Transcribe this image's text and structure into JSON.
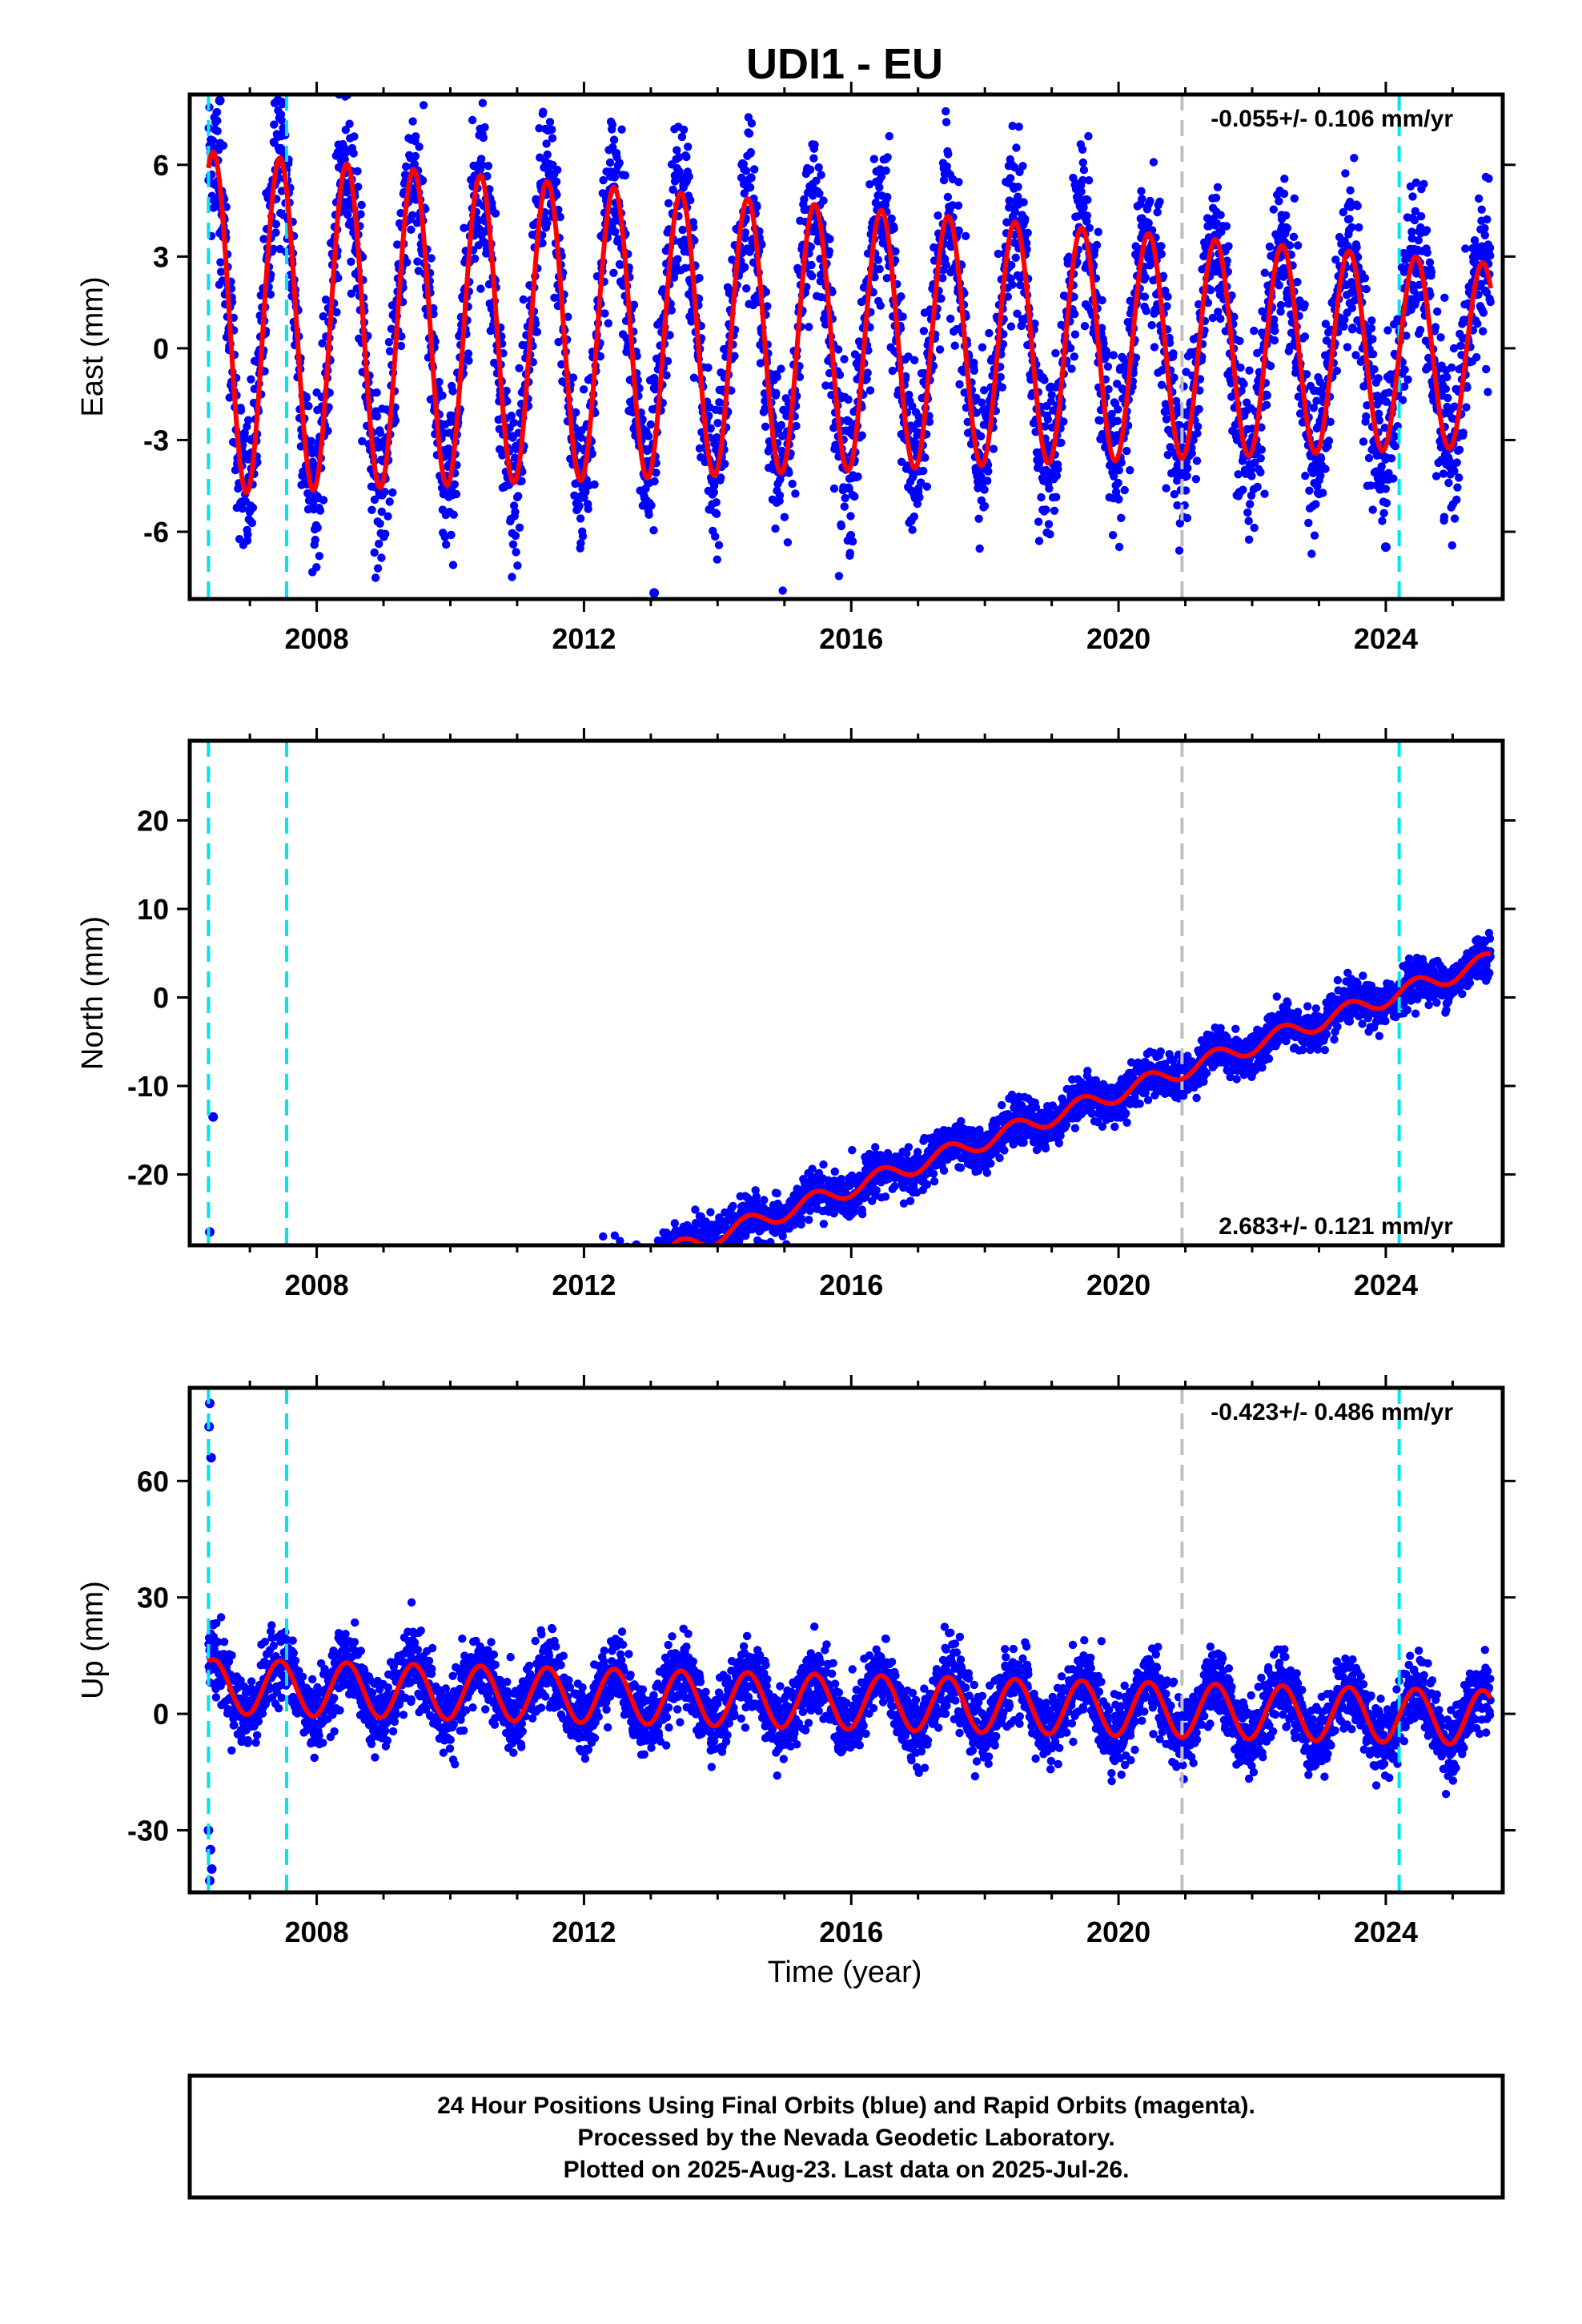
{
  "chart_data": {
    "type": "scatter",
    "title": "UDI1 - EU",
    "xlabel": "Time (year)",
    "x_ticks": [
      2008,
      2012,
      2016,
      2020,
      2024
    ],
    "xlim": [
      2006.1,
      2025.75
    ],
    "data_start": 2006.38,
    "data_end": 2025.57,
    "event_lines": [
      {
        "x": 2006.38,
        "color": "#00e5ee"
      },
      {
        "x": 2007.55,
        "color": "#00e5ee"
      },
      {
        "x": 2020.95,
        "color": "#bfbfbf"
      },
      {
        "x": 2024.2,
        "color": "#00e5ee"
      }
    ],
    "series": [
      {
        "name": "Final Orbits",
        "marker_color": "#0000ff"
      },
      {
        "name": "Model",
        "line_color": "#ff0000"
      }
    ],
    "panels": [
      {
        "component": "East",
        "ylabel": "East (mm)",
        "ylim": [
          -8.2,
          8.3
        ],
        "y_ticks": [
          -6,
          -3,
          0,
          3,
          6
        ],
        "y_tick_labels": [
          "-6",
          "-3",
          "0",
          "3",
          "6"
        ],
        "rate_label": "-0.055+/- 0.106 mm/yr",
        "rate_position": "top-right",
        "rate_mm_per_yr": -0.055,
        "rate_sigma": 0.106,
        "trend": {
          "slope": -0.055,
          "intercept": 0.3
        },
        "seasonal_amplitude": [
          5.6,
          3.0
        ],
        "scatter_sd": 1.3,
        "outliers": [
          {
            "x": 2006.55,
            "y": 8.1
          },
          {
            "x": 2007.42,
            "y": 8.1
          },
          {
            "x": 2013.05,
            "y": -8.0
          },
          {
            "x": 2024.0,
            "y": -6.5
          }
        ]
      },
      {
        "component": "North",
        "ylabel": "North (mm)",
        "ylim": [
          -28,
          29
        ],
        "y_ticks": [
          -20,
          -10,
          0,
          10,
          20
        ],
        "y_tick_labels": [
          "-20",
          "-10",
          "0",
          "10",
          "20"
        ],
        "rate_label": "2.683+/- 0.121 mm/yr",
        "rate_position": "bottom-right",
        "rate_mm_per_yr": 2.683,
        "rate_sigma": 0.121,
        "trend": {
          "slope": 2.683,
          "intercept": -21.5
        },
        "seasonal_amplitude": [
          1.0,
          1.0
        ],
        "scatter_sd": 1.2,
        "outliers": [
          {
            "x": 2006.45,
            "y": -13.5
          },
          {
            "x": 2006.4,
            "y": -26.5
          }
        ]
      },
      {
        "component": "Up",
        "ylabel": "Up (mm)",
        "ylim": [
          -46,
          84
        ],
        "y_ticks": [
          -30,
          0,
          30,
          60
        ],
        "y_tick_labels": [
          "-30",
          "0",
          "30",
          "60"
        ],
        "rate_label": "-0.423+/- 0.486 mm/yr",
        "rate_position": "top-right",
        "rate_mm_per_yr": -0.423,
        "rate_sigma": 0.486,
        "trend": {
          "slope": -0.423,
          "intercept": 3.0
        },
        "seasonal_amplitude": [
          7.0,
          7.0
        ],
        "scatter_sd": 4.5,
        "outliers": [
          {
            "x": 2006.4,
            "y": 80
          },
          {
            "x": 2006.39,
            "y": 74
          },
          {
            "x": 2006.42,
            "y": 66
          },
          {
            "x": 2006.38,
            "y": -30
          },
          {
            "x": 2006.41,
            "y": -35
          },
          {
            "x": 2006.43,
            "y": -40
          },
          {
            "x": 2006.4,
            "y": -43
          },
          {
            "x": 2006.45,
            "y": 23
          }
        ]
      }
    ],
    "annotations": [
      "24 Hour Positions Using Final Orbits (blue) and Rapid Orbits (magenta).",
      "Processed by the Nevada Geodetic Laboratory.",
      "Plotted on 2025-Aug-23. Last data on 2025-Jul-26."
    ]
  },
  "header": {
    "title": "UDI1 - EU"
  },
  "panel_labels": {
    "east_ylabel": "East (mm)",
    "north_ylabel": "North (mm)",
    "up_ylabel": "Up (mm)",
    "east_rate": "-0.055+/- 0.106 mm/yr",
    "north_rate": "2.683+/- 0.121 mm/yr",
    "up_rate": "-0.423+/- 0.486 mm/yr",
    "xlabel": "Time (year)"
  },
  "footer": {
    "line1": "24 Hour Positions Using Final Orbits (blue) and Rapid Orbits (magenta).",
    "line2": "Processed by the Nevada Geodetic Laboratory.",
    "line3": "Plotted on 2025-Aug-23. Last data on 2025-Jul-26."
  },
  "colors": {
    "points": "#0000ff",
    "model": "#ff0000",
    "event_cyan": "#00e5ee",
    "event_gray": "#bfbfbf",
    "frame": "#000000"
  }
}
